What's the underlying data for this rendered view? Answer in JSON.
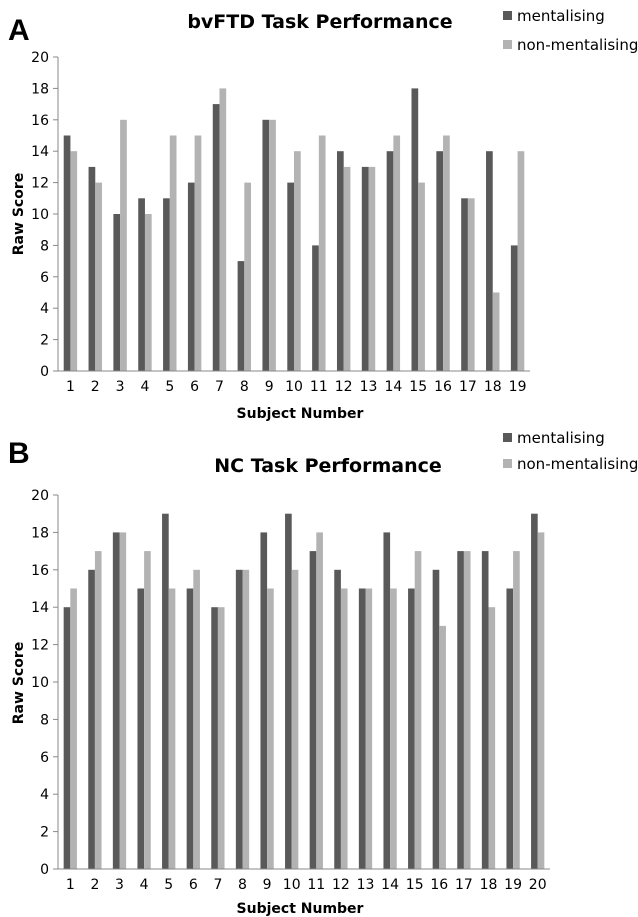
{
  "chart_data": [
    {
      "panel": "A",
      "type": "bar",
      "title": "bvFTD Task Performance",
      "xlabel": "Subject Number",
      "ylabel": "Raw Score",
      "ylim": [
        0,
        20
      ],
      "ytick_step": 2,
      "grid": false,
      "legend_position": "top-right",
      "categories": [
        "1",
        "2",
        "3",
        "4",
        "5",
        "6",
        "7",
        "8",
        "9",
        "10",
        "11",
        "12",
        "13",
        "14",
        "15",
        "16",
        "17",
        "18",
        "19"
      ],
      "series": [
        {
          "name": "mentalising",
          "color": "#595959",
          "values": [
            15,
            13,
            10,
            11,
            11,
            12,
            17,
            7,
            16,
            12,
            8,
            14,
            13,
            14,
            18,
            14,
            11,
            14,
            8
          ]
        },
        {
          "name": "non-mentalising",
          "color": "#b3b3b3",
          "values": [
            14,
            12,
            16,
            10,
            15,
            15,
            18,
            12,
            16,
            14,
            15,
            13,
            13,
            15,
            12,
            15,
            11,
            5,
            14
          ]
        }
      ]
    },
    {
      "panel": "B",
      "type": "bar",
      "title": "NC Task Performance",
      "xlabel": "Subject Number",
      "ylabel": "Raw Score",
      "ylim": [
        0,
        20
      ],
      "ytick_step": 2,
      "grid": false,
      "legend_position": "top-right",
      "categories": [
        "1",
        "2",
        "3",
        "4",
        "5",
        "6",
        "7",
        "8",
        "9",
        "10",
        "11",
        "12",
        "13",
        "14",
        "15",
        "16",
        "17",
        "18",
        "19",
        "20"
      ],
      "series": [
        {
          "name": "mentalising",
          "color": "#595959",
          "values": [
            14,
            16,
            18,
            15,
            19,
            15,
            14,
            16,
            18,
            19,
            17,
            16,
            15,
            18,
            15,
            16,
            17,
            17,
            15,
            19
          ]
        },
        {
          "name": "non-mentalising",
          "color": "#b3b3b3",
          "values": [
            15,
            17,
            18,
            17,
            15,
            16,
            14,
            16,
            15,
            16,
            18,
            15,
            15,
            15,
            17,
            13,
            17,
            14,
            17,
            18
          ]
        }
      ]
    }
  ]
}
